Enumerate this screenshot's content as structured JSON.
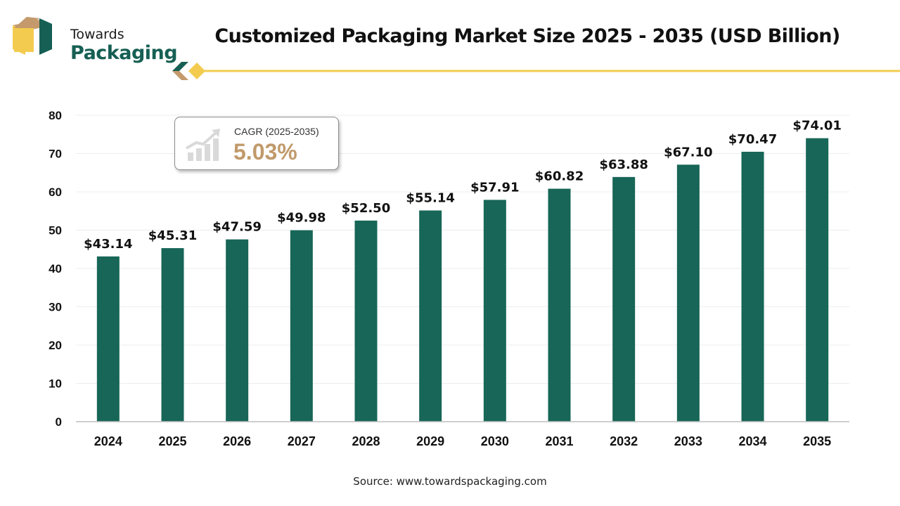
{
  "logo": {
    "line1": "Towards",
    "line2": "Packaging"
  },
  "colors": {
    "bar": "#176657",
    "accent_gold": "#f3cc4f",
    "cagr_value": "#c19a6b",
    "logo_green": "#165f54",
    "logo_tan": "#c49a6c"
  },
  "cagr": {
    "label": "CAGR (2025-2035)",
    "value": "5.03%",
    "icon": "growth-chart-icon"
  },
  "source": "Source: www.towardspackaging.com",
  "chart_data": {
    "type": "bar",
    "title": "Customized Packaging Market Size 2025 - 2035 (USD Billion)",
    "xlabel": "",
    "ylabel": "",
    "categories": [
      "2024",
      "2025",
      "2026",
      "2027",
      "2028",
      "2029",
      "2030",
      "2031",
      "2032",
      "2033",
      "2034",
      "2035"
    ],
    "values": [
      43.14,
      45.31,
      47.59,
      49.98,
      52.5,
      55.14,
      57.91,
      60.82,
      63.88,
      67.1,
      70.47,
      74.01
    ],
    "value_labels": [
      "$43.14",
      "$45.31",
      "$47.59",
      "$49.98",
      "$52.50",
      "$55.14",
      "$57.91",
      "$60.82",
      "$63.88",
      "$67.10",
      "$70.47",
      "$74.01"
    ],
    "ylim": [
      0,
      80
    ],
    "yticks": [
      0,
      10,
      20,
      30,
      40,
      50,
      60,
      70,
      80
    ],
    "grid": true,
    "legend": "none"
  }
}
